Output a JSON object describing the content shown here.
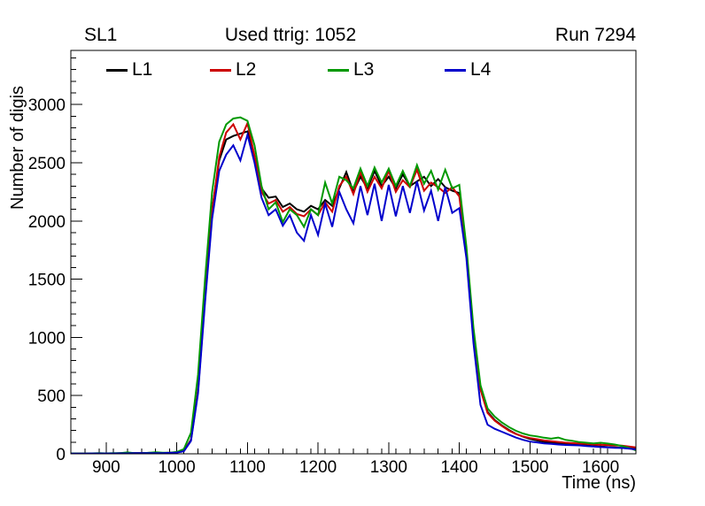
{
  "header": {
    "left": "SL1",
    "center": "Used ttrig: 1052",
    "right": "Run 7294"
  },
  "legend": [
    {
      "label": "L1",
      "color": "#000000"
    },
    {
      "label": "L2",
      "color": "#cc0000"
    },
    {
      "label": "L3",
      "color": "#009900"
    },
    {
      "label": "L4",
      "color": "#0000cc"
    }
  ],
  "colors": {
    "foreground": "#000000",
    "background": "#ffffff",
    "l1": "#000000",
    "l2": "#cc0000",
    "l3": "#009900",
    "l4": "#0000cc"
  },
  "chart_data": {
    "type": "line",
    "title": "Used ttrig: 1052",
    "xlabel": "Time (ns)",
    "ylabel": "Number of digis",
    "xlim": [
      850,
      1650
    ],
    "ylim": [
      0,
      3465
    ],
    "x_ticks": [
      900,
      1000,
      1100,
      1200,
      1300,
      1400,
      1500,
      1600
    ],
    "y_ticks": [
      0,
      500,
      1000,
      1500,
      2000,
      2500,
      3000
    ],
    "x_minor_step": 20,
    "y_minor_step": 100,
    "grid": false,
    "legend_position": "top-inside",
    "x": [
      850,
      860,
      870,
      880,
      890,
      900,
      910,
      920,
      930,
      940,
      950,
      960,
      970,
      980,
      990,
      1000,
      1010,
      1020,
      1030,
      1040,
      1050,
      1060,
      1070,
      1080,
      1090,
      1100,
      1110,
      1120,
      1130,
      1140,
      1150,
      1160,
      1170,
      1180,
      1190,
      1200,
      1210,
      1220,
      1230,
      1240,
      1250,
      1260,
      1270,
      1280,
      1290,
      1300,
      1310,
      1320,
      1330,
      1340,
      1350,
      1360,
      1370,
      1380,
      1390,
      1400,
      1410,
      1420,
      1430,
      1440,
      1450,
      1460,
      1470,
      1480,
      1490,
      1500,
      1510,
      1520,
      1530,
      1540,
      1550,
      1560,
      1570,
      1580,
      1590,
      1600,
      1610,
      1620,
      1630,
      1640,
      1650
    ],
    "series": [
      {
        "name": "L1",
        "color": "#000000",
        "values": [
          3,
          3,
          2,
          3,
          3,
          4,
          3,
          5,
          4,
          6,
          5,
          8,
          7,
          6,
          8,
          12,
          25,
          120,
          550,
          1350,
          2100,
          2520,
          2700,
          2730,
          2750,
          2770,
          2550,
          2280,
          2200,
          2210,
          2120,
          2150,
          2100,
          2080,
          2130,
          2100,
          2180,
          2130,
          2280,
          2420,
          2250,
          2380,
          2280,
          2430,
          2300,
          2380,
          2280,
          2400,
          2300,
          2340,
          2380,
          2300,
          2360,
          2290,
          2260,
          2240,
          1750,
          1050,
          560,
          360,
          290,
          245,
          205,
          172,
          148,
          128,
          115,
          103,
          96,
          92,
          86,
          82,
          78,
          72,
          65,
          62,
          58,
          55,
          52,
          48,
          42
        ]
      },
      {
        "name": "L2",
        "color": "#cc0000",
        "values": [
          3,
          2,
          3,
          3,
          4,
          3,
          4,
          4,
          5,
          5,
          6,
          7,
          8,
          7,
          9,
          13,
          24,
          115,
          540,
          1330,
          2080,
          2550,
          2760,
          2830,
          2700,
          2840,
          2560,
          2250,
          2150,
          2180,
          2080,
          2120,
          2060,
          2040,
          2100,
          2050,
          2160,
          2080,
          2300,
          2380,
          2230,
          2420,
          2250,
          2380,
          2280,
          2430,
          2250,
          2350,
          2290,
          2440,
          2260,
          2330,
          2290,
          2240,
          2290,
          2210,
          1730,
          1030,
          550,
          350,
          285,
          240,
          200,
          170,
          150,
          135,
          125,
          115,
          108,
          102,
          96,
          92,
          88,
          85,
          80,
          78,
          75,
          72,
          70,
          62,
          55
        ]
      },
      {
        "name": "L3",
        "color": "#009900",
        "values": [
          4,
          3,
          3,
          4,
          5,
          4,
          6,
          5,
          12,
          6,
          5,
          8,
          14,
          9,
          10,
          16,
          40,
          180,
          680,
          1500,
          2250,
          2680,
          2830,
          2880,
          2890,
          2860,
          2650,
          2300,
          2100,
          2160,
          1990,
          2100,
          2050,
          1950,
          2100,
          2050,
          2330,
          2150,
          2380,
          2350,
          2280,
          2450,
          2300,
          2460,
          2330,
          2450,
          2300,
          2430,
          2300,
          2480,
          2320,
          2430,
          2270,
          2440,
          2280,
          2310,
          1780,
          1080,
          590,
          390,
          320,
          270,
          230,
          198,
          175,
          158,
          150,
          138,
          130,
          140,
          120,
          112,
          100,
          95,
          90,
          95,
          88,
          80,
          68,
          52,
          30
        ]
      },
      {
        "name": "L4",
        "color": "#0000cc",
        "values": [
          2,
          2,
          2,
          3,
          3,
          3,
          3,
          4,
          4,
          5,
          5,
          6,
          6,
          6,
          8,
          11,
          22,
          110,
          520,
          1300,
          2020,
          2430,
          2570,
          2650,
          2520,
          2740,
          2500,
          2200,
          2050,
          2100,
          1960,
          2050,
          1900,
          1830,
          2050,
          1880,
          2150,
          1950,
          2250,
          2100,
          1980,
          2300,
          2050,
          2320,
          2000,
          2310,
          2040,
          2300,
          2070,
          2340,
          2090,
          2260,
          2000,
          2290,
          2070,
          2110,
          1680,
          950,
          420,
          250,
          215,
          190,
          165,
          140,
          120,
          105,
          98,
          90,
          85,
          80,
          76,
          74,
          72,
          66,
          62,
          58,
          55,
          52,
          50,
          45,
          38
        ]
      }
    ]
  }
}
